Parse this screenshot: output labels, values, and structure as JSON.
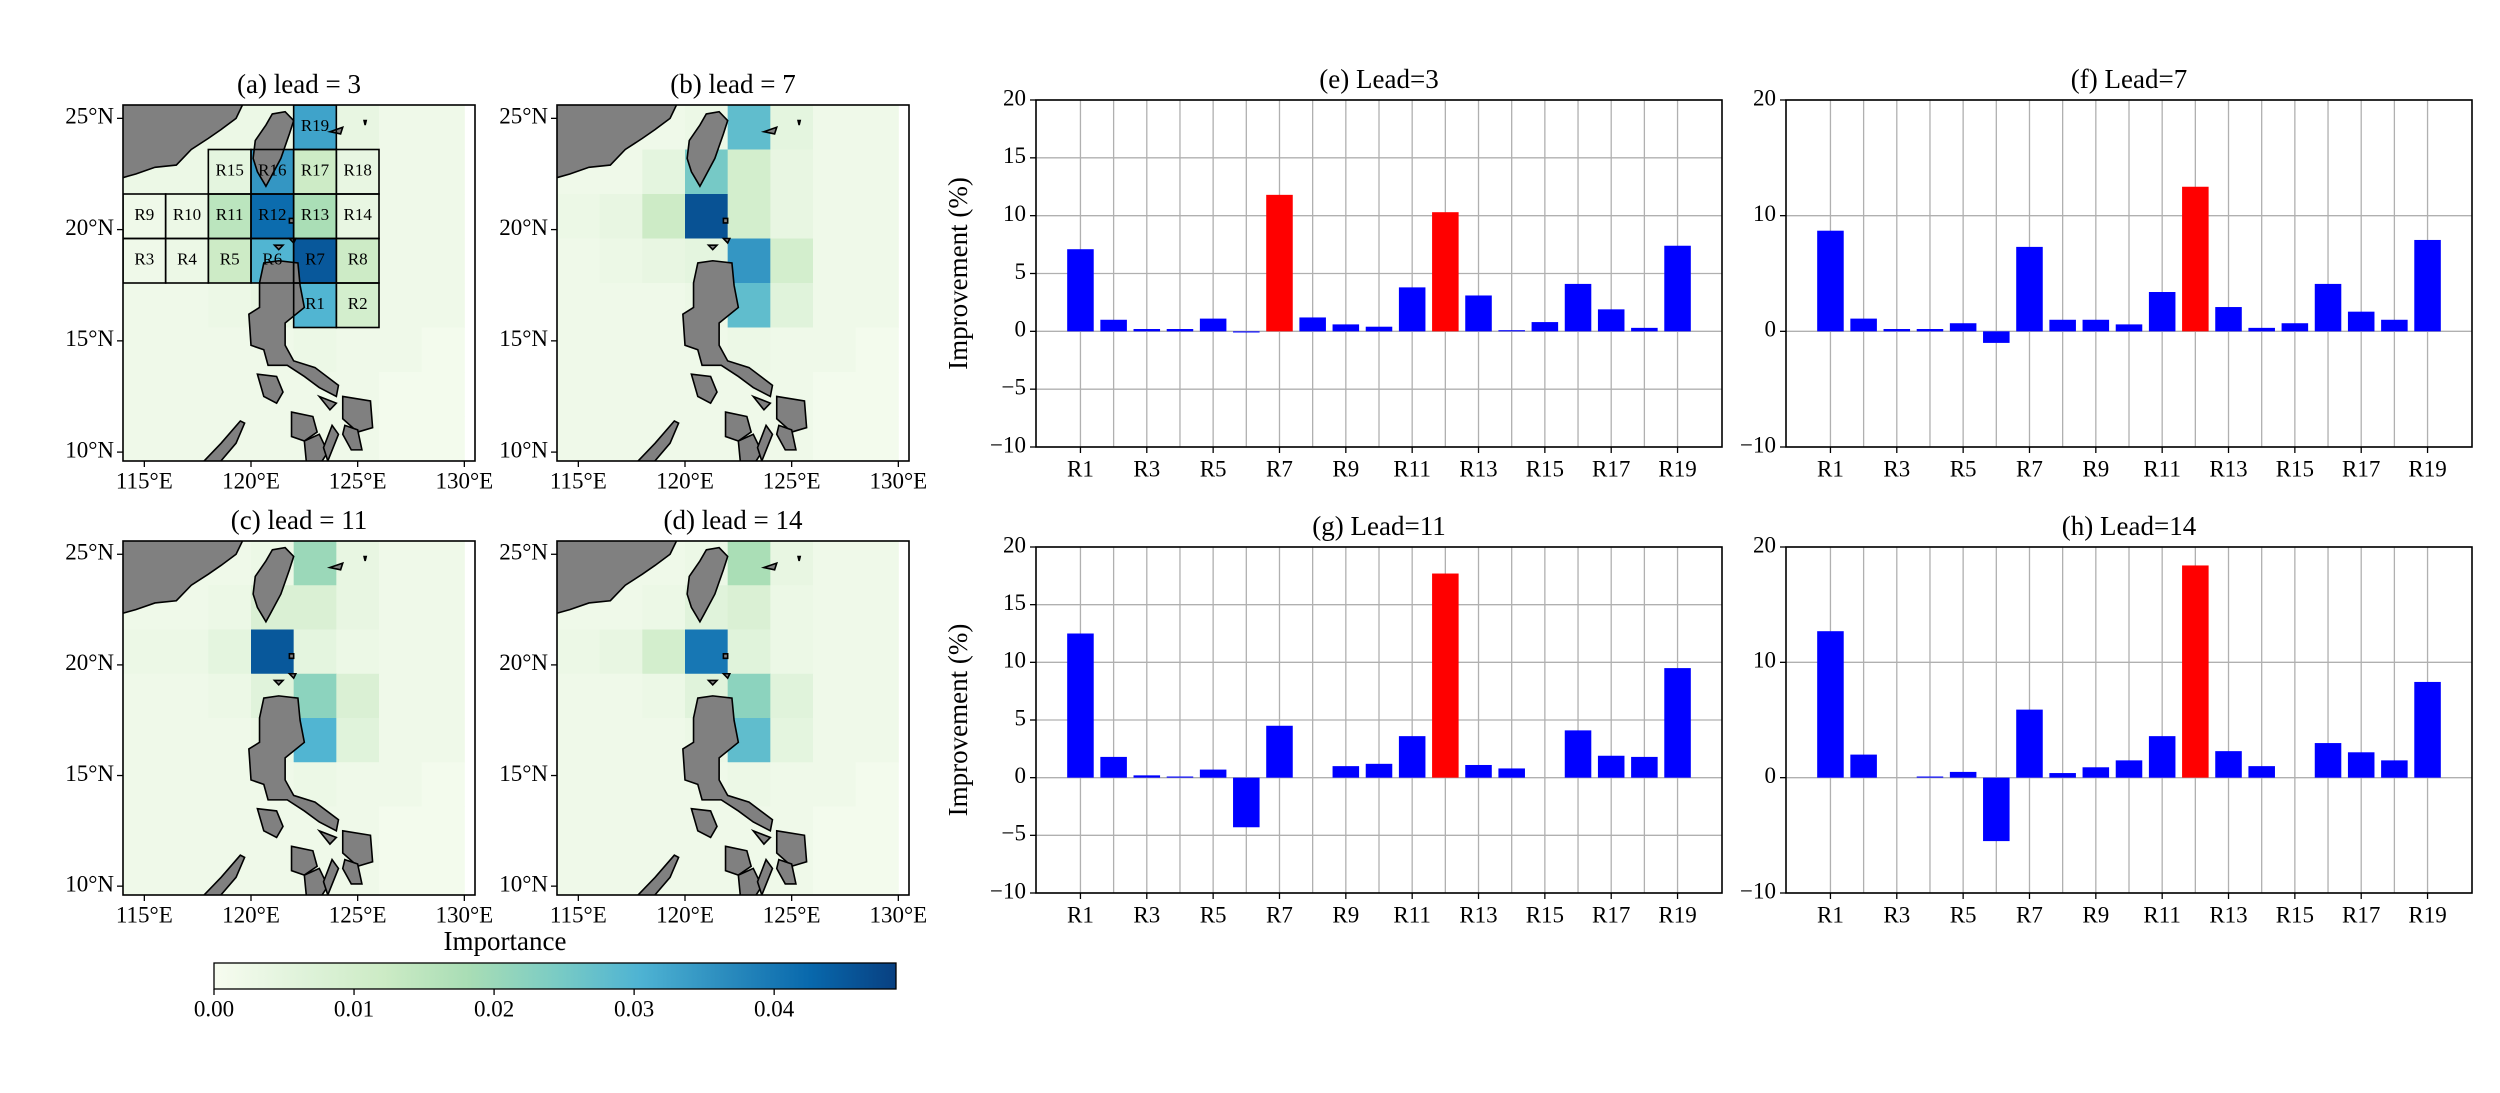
{
  "chart_data": [
    {
      "type": "heatmap",
      "title": "(a) lead = 3",
      "xlim": [
        114,
        130.5
      ],
      "ylim": [
        9.6,
        25.6
      ],
      "xticks": [
        {
          "value": 115,
          "label": "115°E"
        },
        {
          "value": 120,
          "label": "120°E"
        },
        {
          "value": 125,
          "label": "125°E"
        },
        {
          "value": 130,
          "label": "130°E"
        }
      ],
      "yticks": [
        {
          "value": 10,
          "label": "10°N"
        },
        {
          "value": 15,
          "label": "15°N"
        },
        {
          "value": 20,
          "label": "20°N"
        },
        {
          "value": 25,
          "label": "25°N"
        }
      ],
      "x_edges": [
        114,
        116,
        118,
        120,
        122,
        124,
        126,
        128,
        130
      ],
      "y_edges": [
        25.6,
        23.6,
        21.6,
        19.6,
        17.6,
        15.6,
        13.6,
        11.6,
        9.6
      ],
      "values": [
        [
          0.003,
          0.003,
          0.003,
          0.003,
          0.033,
          0.004,
          0.002,
          0.002
        ],
        [
          0.003,
          0.003,
          0.005,
          0.035,
          0.012,
          0.004,
          0.002,
          0.002
        ],
        [
          0.002,
          0.003,
          0.015,
          0.042,
          0.018,
          0.004,
          0.002,
          0.002
        ],
        [
          0.002,
          0.003,
          0.012,
          0.03,
          0.045,
          0.012,
          0.002,
          0.002
        ],
        [
          0.002,
          0.002,
          0.003,
          0.004,
          0.03,
          0.01,
          0.002,
          0.002
        ],
        [
          0.002,
          0.002,
          0.002,
          0.002,
          0.003,
          0.002,
          0.002,
          0.001
        ],
        [
          0.002,
          0.002,
          0.002,
          0.002,
          0.002,
          0.002,
          0.001,
          0.001
        ],
        [
          0.002,
          0.002,
          0.002,
          0.002,
          0.002,
          0.002,
          0.001,
          0.001
        ]
      ],
      "regions": [
        {
          "label": "R1",
          "lon": [
            122,
            124
          ],
          "lat": [
            15.6,
            17.6
          ]
        },
        {
          "label": "R2",
          "lon": [
            124,
            126
          ],
          "lat": [
            15.6,
            17.6
          ]
        },
        {
          "label": "R3",
          "lon": [
            114,
            116
          ],
          "lat": [
            17.6,
            19.6
          ]
        },
        {
          "label": "R4",
          "lon": [
            116,
            118
          ],
          "lat": [
            17.6,
            19.6
          ]
        },
        {
          "label": "R5",
          "lon": [
            118,
            120
          ],
          "lat": [
            17.6,
            19.6
          ]
        },
        {
          "label": "R6",
          "lon": [
            120,
            122
          ],
          "lat": [
            17.6,
            19.6
          ]
        },
        {
          "label": "R7",
          "lon": [
            122,
            124
          ],
          "lat": [
            17.6,
            19.6
          ]
        },
        {
          "label": "R8",
          "lon": [
            124,
            126
          ],
          "lat": [
            17.6,
            19.6
          ]
        },
        {
          "label": "R9",
          "lon": [
            114,
            116
          ],
          "lat": [
            19.6,
            21.6
          ]
        },
        {
          "label": "R10",
          "lon": [
            116,
            118
          ],
          "lat": [
            19.6,
            21.6
          ]
        },
        {
          "label": "R11",
          "lon": [
            118,
            120
          ],
          "lat": [
            19.6,
            21.6
          ]
        },
        {
          "label": "R12",
          "lon": [
            120,
            122
          ],
          "lat": [
            19.6,
            21.6
          ]
        },
        {
          "label": "R13",
          "lon": [
            122,
            124
          ],
          "lat": [
            19.6,
            21.6
          ]
        },
        {
          "label": "R14",
          "lon": [
            124,
            126
          ],
          "lat": [
            19.6,
            21.6
          ]
        },
        {
          "label": "R15",
          "lon": [
            118,
            120
          ],
          "lat": [
            21.6,
            23.6
          ]
        },
        {
          "label": "R16",
          "lon": [
            120,
            122
          ],
          "lat": [
            21.6,
            23.6
          ]
        },
        {
          "label": "R17",
          "lon": [
            122,
            124
          ],
          "lat": [
            21.6,
            23.6
          ]
        },
        {
          "label": "R18",
          "lon": [
            124,
            126
          ],
          "lat": [
            21.6,
            23.6
          ]
        },
        {
          "label": "R19",
          "lon": [
            122,
            124
          ],
          "lat": [
            23.6,
            25.6
          ]
        }
      ]
    },
    {
      "type": "heatmap",
      "title": "(b) lead = 7",
      "xlim": [
        114,
        130.5
      ],
      "ylim": [
        9.6,
        25.6
      ],
      "xticks": [
        {
          "value": 115,
          "label": "115°E"
        },
        {
          "value": 120,
          "label": "120°E"
        },
        {
          "value": 125,
          "label": "125°E"
        },
        {
          "value": 130,
          "label": "130°E"
        }
      ],
      "yticks": [
        {
          "value": 10,
          "label": "10°N"
        },
        {
          "value": 15,
          "label": "15°N"
        },
        {
          "value": 20,
          "label": "20°N"
        },
        {
          "value": 25,
          "label": "25°N"
        }
      ],
      "x_edges": [
        114,
        116,
        118,
        120,
        122,
        124,
        126,
        128,
        130
      ],
      "y_edges": [
        25.6,
        23.6,
        21.6,
        19.6,
        17.6,
        15.6,
        13.6,
        11.6,
        9.6
      ],
      "values": [
        [
          0.002,
          0.002,
          0.002,
          0.003,
          0.028,
          0.005,
          0.002,
          0.002
        ],
        [
          0.002,
          0.002,
          0.005,
          0.025,
          0.01,
          0.004,
          0.002,
          0.002
        ],
        [
          0.003,
          0.004,
          0.012,
          0.046,
          0.01,
          0.004,
          0.002,
          0.002
        ],
        [
          0.002,
          0.003,
          0.004,
          0.005,
          0.035,
          0.01,
          0.002,
          0.002
        ],
        [
          0.002,
          0.002,
          0.002,
          0.003,
          0.028,
          0.006,
          0.002,
          0.002
        ],
        [
          0.002,
          0.002,
          0.002,
          0.002,
          0.003,
          0.002,
          0.002,
          0.001
        ],
        [
          0.002,
          0.002,
          0.002,
          0.002,
          0.002,
          0.002,
          0.001,
          0.001
        ],
        [
          0.002,
          0.002,
          0.002,
          0.002,
          0.002,
          0.002,
          0.001,
          0.001
        ]
      ]
    },
    {
      "type": "heatmap",
      "title": "(c) lead = 11",
      "xlim": [
        114,
        130.5
      ],
      "ylim": [
        9.6,
        25.6
      ],
      "xticks": [
        {
          "value": 115,
          "label": "115°E"
        },
        {
          "value": 120,
          "label": "120°E"
        },
        {
          "value": 125,
          "label": "125°E"
        },
        {
          "value": 130,
          "label": "130°E"
        }
      ],
      "yticks": [
        {
          "value": 10,
          "label": "10°N"
        },
        {
          "value": 15,
          "label": "15°N"
        },
        {
          "value": 20,
          "label": "20°N"
        },
        {
          "value": 25,
          "label": "25°N"
        }
      ],
      "x_edges": [
        114,
        116,
        118,
        120,
        122,
        124,
        126,
        128,
        130
      ],
      "y_edges": [
        25.6,
        23.6,
        21.6,
        19.6,
        17.6,
        15.6,
        13.6,
        11.6,
        9.6
      ],
      "values": [
        [
          0.002,
          0.002,
          0.002,
          0.003,
          0.02,
          0.004,
          0.002,
          0.002
        ],
        [
          0.002,
          0.002,
          0.003,
          0.008,
          0.008,
          0.004,
          0.002,
          0.002
        ],
        [
          0.003,
          0.003,
          0.005,
          0.045,
          0.005,
          0.003,
          0.002,
          0.002
        ],
        [
          0.002,
          0.002,
          0.003,
          0.006,
          0.022,
          0.008,
          0.002,
          0.002
        ],
        [
          0.002,
          0.002,
          0.002,
          0.003,
          0.03,
          0.006,
          0.002,
          0.002
        ],
        [
          0.002,
          0.002,
          0.002,
          0.002,
          0.003,
          0.002,
          0.002,
          0.001
        ],
        [
          0.002,
          0.002,
          0.002,
          0.002,
          0.002,
          0.002,
          0.001,
          0.001
        ],
        [
          0.002,
          0.002,
          0.002,
          0.002,
          0.002,
          0.002,
          0.001,
          0.001
        ]
      ]
    },
    {
      "type": "heatmap",
      "title": "(d) lead = 14",
      "xlim": [
        114,
        130.5
      ],
      "ylim": [
        9.6,
        25.6
      ],
      "xticks": [
        {
          "value": 115,
          "label": "115°E"
        },
        {
          "value": 120,
          "label": "120°E"
        },
        {
          "value": 125,
          "label": "125°E"
        },
        {
          "value": 130,
          "label": "130°E"
        }
      ],
      "yticks": [
        {
          "value": 10,
          "label": "10°N"
        },
        {
          "value": 15,
          "label": "15°N"
        },
        {
          "value": 20,
          "label": "20°N"
        },
        {
          "value": 25,
          "label": "25°N"
        }
      ],
      "x_edges": [
        114,
        116,
        118,
        120,
        122,
        124,
        126,
        128,
        130
      ],
      "y_edges": [
        25.6,
        23.6,
        21.6,
        19.6,
        17.6,
        15.6,
        13.6,
        11.6,
        9.6
      ],
      "values": [
        [
          0.002,
          0.002,
          0.002,
          0.003,
          0.018,
          0.004,
          0.002,
          0.002
        ],
        [
          0.002,
          0.002,
          0.003,
          0.006,
          0.008,
          0.003,
          0.002,
          0.002
        ],
        [
          0.003,
          0.004,
          0.01,
          0.04,
          0.006,
          0.003,
          0.002,
          0.002
        ],
        [
          0.002,
          0.002,
          0.003,
          0.006,
          0.022,
          0.006,
          0.002,
          0.002
        ],
        [
          0.002,
          0.002,
          0.002,
          0.003,
          0.028,
          0.005,
          0.002,
          0.002
        ],
        [
          0.002,
          0.002,
          0.002,
          0.002,
          0.003,
          0.002,
          0.002,
          0.001
        ],
        [
          0.002,
          0.002,
          0.002,
          0.002,
          0.002,
          0.002,
          0.001,
          0.001
        ],
        [
          0.002,
          0.002,
          0.002,
          0.002,
          0.002,
          0.002,
          0.001,
          0.001
        ]
      ]
    },
    {
      "type": "bar",
      "title": "(e) Lead=3",
      "ylabel": "Improvement (%)",
      "categories": [
        "R1",
        null,
        "R3",
        null,
        "R5",
        null,
        "R7",
        null,
        "R9",
        null,
        "R11",
        null,
        "R13",
        null,
        "R15",
        null,
        "R17",
        null,
        "R19"
      ],
      "values": [
        7.1,
        1.0,
        0.2,
        0.2,
        1.1,
        -0.1,
        11.8,
        1.2,
        0.6,
        0.4,
        3.8,
        10.3,
        3.1,
        0.1,
        0.8,
        4.1,
        1.9,
        0.3,
        7.4
      ],
      "colors": [
        "#0000ff",
        "#0000ff",
        "#0000ff",
        "#0000ff",
        "#0000ff",
        "#0000ff",
        "#ff0000",
        "#0000ff",
        "#0000ff",
        "#0000ff",
        "#0000ff",
        "#ff0000",
        "#0000ff",
        "#0000ff",
        "#0000ff",
        "#0000ff",
        "#0000ff",
        "#0000ff",
        "#0000ff"
      ],
      "ylim": [
        -10,
        20
      ],
      "yticks": [
        {
          "value": -10,
          "label": "−10"
        },
        {
          "value": -5,
          "label": "−5"
        },
        0,
        5,
        10,
        15,
        20
      ],
      "grid": true
    },
    {
      "type": "bar",
      "title": "(f) Lead=7",
      "categories": [
        "R1",
        null,
        "R3",
        null,
        "R5",
        null,
        "R7",
        null,
        "R9",
        null,
        "R11",
        null,
        "R13",
        null,
        "R15",
        null,
        "R17",
        null,
        "R19"
      ],
      "values": [
        8.7,
        1.1,
        0.2,
        0.2,
        0.7,
        -1.0,
        7.3,
        1.0,
        1.0,
        0.6,
        3.4,
        12.5,
        2.1,
        0.3,
        0.7,
        4.1,
        1.7,
        1.0,
        7.9
      ],
      "colors": [
        "#0000ff",
        "#0000ff",
        "#0000ff",
        "#0000ff",
        "#0000ff",
        "#0000ff",
        "#0000ff",
        "#0000ff",
        "#0000ff",
        "#0000ff",
        "#0000ff",
        "#ff0000",
        "#0000ff",
        "#0000ff",
        "#0000ff",
        "#0000ff",
        "#0000ff",
        "#0000ff",
        "#0000ff"
      ],
      "ylim": [
        -10,
        20
      ],
      "yticks": [
        {
          "value": -10,
          "label": "−10"
        },
        0,
        10,
        20
      ],
      "grid": true
    },
    {
      "type": "bar",
      "title": "(g) Lead=11",
      "ylabel": "Improvement (%)",
      "categories": [
        "R1",
        null,
        "R3",
        null,
        "R5",
        null,
        "R7",
        null,
        "R9",
        null,
        "R11",
        null,
        "R13",
        null,
        "R15",
        null,
        "R17",
        null,
        "R19"
      ],
      "values": [
        12.5,
        1.8,
        0.2,
        0.1,
        0.7,
        -4.3,
        4.5,
        0,
        1.0,
        1.2,
        3.6,
        17.7,
        1.1,
        0.8,
        0,
        4.1,
        1.9,
        1.8,
        9.5
      ],
      "colors": [
        "#0000ff",
        "#0000ff",
        "#0000ff",
        "#0000ff",
        "#0000ff",
        "#0000ff",
        "#0000ff",
        "#0000ff",
        "#0000ff",
        "#0000ff",
        "#0000ff",
        "#ff0000",
        "#0000ff",
        "#0000ff",
        "#0000ff",
        "#0000ff",
        "#0000ff",
        "#0000ff",
        "#0000ff"
      ],
      "ylim": [
        -10,
        20
      ],
      "yticks": [
        {
          "value": -10,
          "label": "−10"
        },
        {
          "value": -5,
          "label": "−5"
        },
        0,
        5,
        10,
        15,
        20
      ],
      "grid": true
    },
    {
      "type": "bar",
      "title": "(h) Lead=14",
      "categories": [
        "R1",
        null,
        "R3",
        null,
        "R5",
        null,
        "R7",
        null,
        "R9",
        null,
        "R11",
        null,
        "R13",
        null,
        "R15",
        null,
        "R17",
        null,
        "R19"
      ],
      "values": [
        12.7,
        2.0,
        0,
        0.1,
        0.5,
        -5.5,
        5.9,
        0.4,
        0.9,
        1.5,
        3.6,
        18.4,
        2.3,
        1.0,
        0,
        3.0,
        2.2,
        1.5,
        8.3
      ],
      "colors": [
        "#0000ff",
        "#0000ff",
        "#0000ff",
        "#0000ff",
        "#0000ff",
        "#0000ff",
        "#0000ff",
        "#0000ff",
        "#0000ff",
        "#0000ff",
        "#0000ff",
        "#ff0000",
        "#0000ff",
        "#0000ff",
        "#0000ff",
        "#0000ff",
        "#0000ff",
        "#0000ff",
        "#0000ff"
      ],
      "ylim": [
        -10,
        20
      ],
      "yticks": [
        {
          "value": -10,
          "label": "−10"
        },
        0,
        10,
        20
      ],
      "grid": true
    },
    {
      "type": "colorbar",
      "label": "Importance",
      "colormap": "GnBu",
      "lim": [
        0,
        0.0487
      ],
      "ticks": [
        {
          "value": 0,
          "label": "0.00"
        },
        {
          "value": 0.01,
          "label": "0.01"
        },
        {
          "value": 0.02,
          "label": "0.02"
        },
        {
          "value": 0.03,
          "label": "0.03"
        },
        {
          "value": 0.04,
          "label": "0.04"
        }
      ]
    }
  ]
}
